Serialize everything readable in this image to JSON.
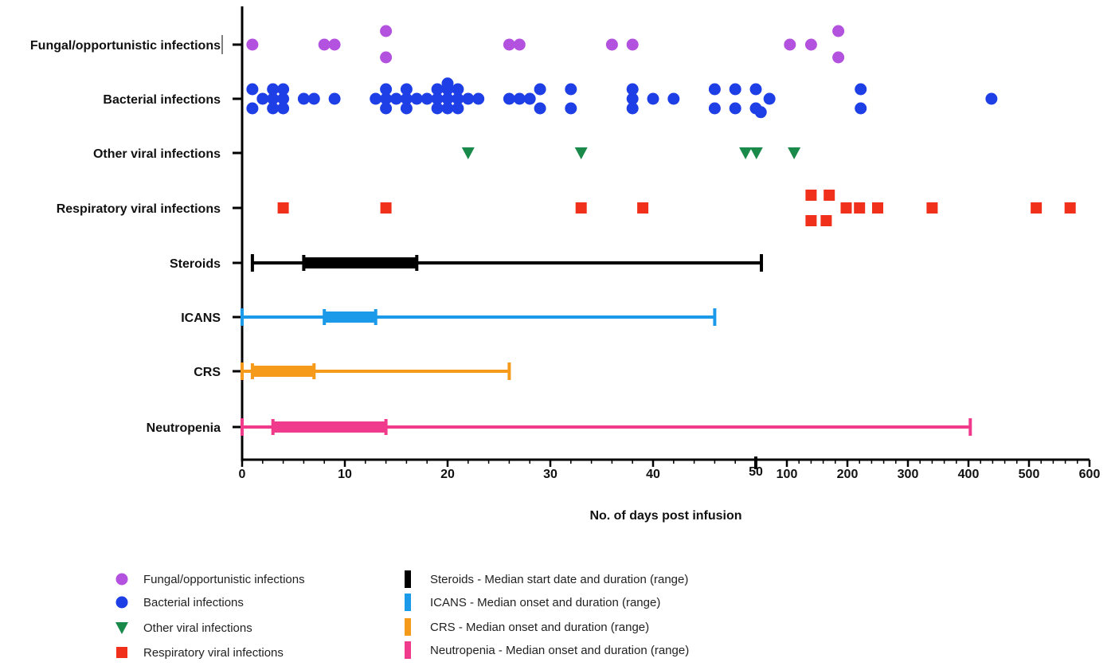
{
  "chart_data": {
    "type": "scatter",
    "title": "",
    "xlabel": "No. of days post infusion",
    "ylabel": "",
    "x_axis": {
      "scale": "broken",
      "segment1": {
        "range": [
          0,
          50
        ],
        "ticks": [
          "0",
          "10",
          "20",
          "30",
          "40",
          "50"
        ]
      },
      "segment2": {
        "range": [
          50,
          600
        ],
        "ticks": [
          "100",
          "200",
          "300",
          "400",
          "500",
          "600"
        ]
      }
    },
    "categories": [
      "Fungal/opportunistic infections",
      "Bacterial infections",
      "Other viral infections",
      "Respiratory viral infections",
      "Steroids",
      "ICANS",
      "CRS",
      "Neutropenia"
    ],
    "series": [
      {
        "category": "Fungal/opportunistic infections",
        "marker": "circle",
        "color": "#b452e0",
        "points": [
          [
            1,
            0
          ],
          [
            8,
            0
          ],
          [
            9,
            0
          ],
          [
            14,
            1
          ],
          [
            14,
            -1
          ],
          [
            26,
            0
          ],
          [
            27,
            0
          ],
          [
            36,
            0
          ],
          [
            38,
            0
          ],
          [
            105,
            0
          ],
          [
            140,
            0
          ],
          [
            185,
            1
          ],
          [
            185,
            -1
          ]
        ]
      },
      {
        "category": "Bacterial infections",
        "marker": "circle",
        "color": "#1f3fe6",
        "points": [
          [
            1,
            1
          ],
          [
            1,
            -1
          ],
          [
            2,
            0
          ],
          [
            3,
            1
          ],
          [
            3,
            -1
          ],
          [
            3,
            0
          ],
          [
            4,
            1
          ],
          [
            4,
            -1
          ],
          [
            4,
            0
          ],
          [
            6,
            0
          ],
          [
            7,
            0
          ],
          [
            9,
            0
          ],
          [
            13,
            0
          ],
          [
            14,
            1
          ],
          [
            14,
            -1
          ],
          [
            14,
            0
          ],
          [
            15,
            0
          ],
          [
            16,
            1
          ],
          [
            16,
            -1
          ],
          [
            16,
            0
          ],
          [
            17,
            0
          ],
          [
            18,
            0
          ],
          [
            19,
            1
          ],
          [
            19,
            -1
          ],
          [
            19,
            0
          ],
          [
            20,
            1
          ],
          [
            20,
            -1
          ],
          [
            20,
            0
          ],
          [
            20,
            2
          ],
          [
            21,
            1
          ],
          [
            21,
            -1
          ],
          [
            21,
            0
          ],
          [
            22,
            0
          ],
          [
            23,
            0
          ],
          [
            26,
            0
          ],
          [
            27,
            0
          ],
          [
            28,
            0
          ],
          [
            29,
            1
          ],
          [
            29,
            -1
          ],
          [
            32,
            1
          ],
          [
            32,
            -1
          ],
          [
            38,
            1
          ],
          [
            38,
            -1
          ],
          [
            38,
            0
          ],
          [
            40,
            0
          ],
          [
            42,
            0
          ],
          [
            46,
            1
          ],
          [
            46,
            -1
          ],
          [
            48,
            1
          ],
          [
            48,
            -1
          ],
          [
            50,
            1
          ],
          [
            50,
            -1
          ],
          [
            58,
            -2
          ],
          [
            72,
            0
          ],
          [
            222,
            1
          ],
          [
            222,
            -1
          ],
          [
            438,
            0
          ]
        ]
      },
      {
        "category": "Other viral infections",
        "marker": "triangle-down",
        "color": "#1a8a4a",
        "points": [
          [
            22,
            0
          ],
          [
            33,
            0
          ],
          [
            49,
            0
          ],
          [
            51,
            0
          ],
          [
            112,
            0
          ]
        ]
      },
      {
        "category": "Respiratory viral infections",
        "marker": "square",
        "color": "#f0301a",
        "points": [
          [
            4,
            0
          ],
          [
            14,
            0
          ],
          [
            33,
            0
          ],
          [
            39,
            0
          ],
          [
            140,
            1
          ],
          [
            170,
            1
          ],
          [
            140,
            -1
          ],
          [
            165,
            -1
          ],
          [
            198,
            0
          ],
          [
            220,
            0
          ],
          [
            250,
            0
          ],
          [
            340,
            0
          ],
          [
            512,
            0
          ],
          [
            568,
            0
          ]
        ]
      }
    ],
    "ranges": [
      {
        "category": "Steroids",
        "color": "#000000",
        "median_start": 6,
        "median_end": 17,
        "range_start": 1,
        "range_end": 59
      },
      {
        "category": "ICANS",
        "color": "#1a9ae8",
        "median_start": 8,
        "median_end": 13,
        "range_start": 0,
        "range_end": 46
      },
      {
        "category": "CRS",
        "color": "#f59a1a",
        "median_start": 1,
        "median_end": 7,
        "range_start": 0,
        "range_end": 26
      },
      {
        "category": "Neutropenia",
        "color": "#f03a8c",
        "median_start": 3,
        "median_end": 14,
        "range_start": 0,
        "range_end": 403
      }
    ],
    "legend": {
      "placement": "bottom",
      "left_column": [
        {
          "label": "Fungal/opportunistic infections",
          "marker": "circle",
          "color": "#b452e0"
        },
        {
          "label": "Bacterial infections",
          "marker": "circle",
          "color": "#1f3fe6"
        },
        {
          "label": "Other viral infections",
          "marker": "triangle-down",
          "color": "#1a8a4a"
        },
        {
          "label": "Respiratory viral infections",
          "marker": "square",
          "color": "#f0301a"
        }
      ],
      "right_column": [
        {
          "label": "Steroids - Median start date and duration (range)",
          "marker": "bar",
          "color": "#000000"
        },
        {
          "label": "ICANS - Median onset and duration (range)",
          "marker": "bar",
          "color": "#1a9ae8"
        },
        {
          "label": "CRS - Median onset and duration (range)",
          "marker": "bar",
          "color": "#f59a1a"
        },
        {
          "label": "Neutropenia - Median onset and duration (range)",
          "marker": "bar",
          "color": "#f03a8c"
        }
      ]
    }
  }
}
